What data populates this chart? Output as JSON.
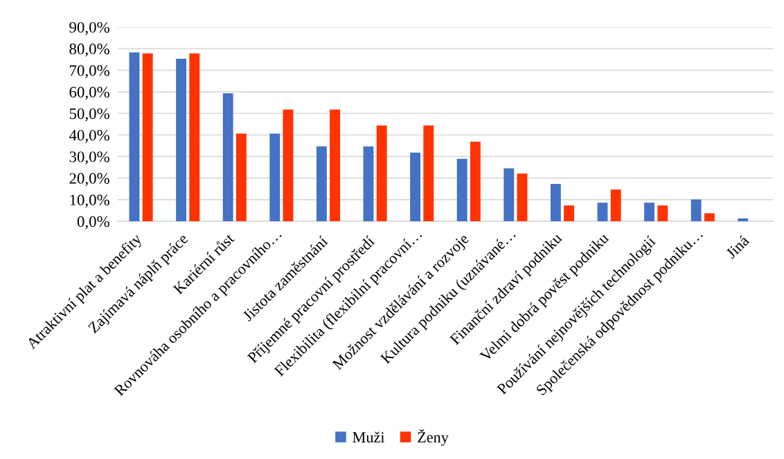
{
  "chart_data": {
    "type": "bar",
    "categories": [
      "Atraktivní plat a benefity",
      "Zajímavá náplň práce",
      "Kariérní růst",
      "Rovnováha osobního a pracovního…",
      "Jistota zaměstnání",
      "Příjemné pracovní prostředí",
      "Flexibilita (flexibilní pracovní…",
      "Možnost vzdělávání a rozvoje",
      "Kultura podniku (uznávané…",
      "Finanční zdraví podniku",
      "Velmi dobrá pověst podniku",
      "Používání nejnovějších technologií",
      "Společenská odpovědnost podniku…",
      "Jiná"
    ],
    "series": [
      {
        "name": "Muži",
        "color": "#4472c4",
        "values": [
          78.3,
          75.3,
          59.3,
          40.6,
          34.7,
          34.7,
          31.8,
          28.9,
          24.5,
          17.3,
          8.6,
          8.6,
          10.1,
          1.3
        ]
      },
      {
        "name": "Ženy",
        "color": "#ff3300",
        "values": [
          77.8,
          77.8,
          40.6,
          51.8,
          51.8,
          44.4,
          44.4,
          36.9,
          22.1,
          7.3,
          14.7,
          7.3,
          3.7,
          0
        ]
      }
    ],
    "ylim": [
      0,
      90
    ],
    "yticks": [
      {
        "value": 0,
        "label": "0,0%"
      },
      {
        "value": 10,
        "label": "10,0%"
      },
      {
        "value": 20,
        "label": "20,0%"
      },
      {
        "value": 30,
        "label": "30,0%"
      },
      {
        "value": 40,
        "label": "40,0%"
      },
      {
        "value": 50,
        "label": "50,0%"
      },
      {
        "value": 60,
        "label": "60,0%"
      },
      {
        "value": 70,
        "label": "70,0%"
      },
      {
        "value": 80,
        "label": "80,0%"
      },
      {
        "value": 90,
        "label": "90,0%"
      }
    ],
    "grid": "y",
    "legend": "bottom"
  }
}
